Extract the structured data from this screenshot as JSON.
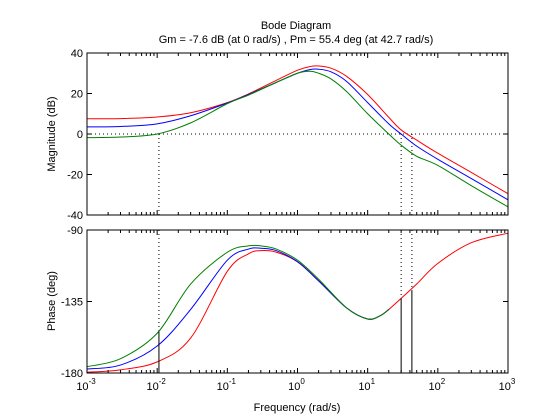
{
  "chart_data": [
    {
      "type": "line",
      "title": "Bode Diagram",
      "subtitle": "Gm = -7.6 dB (at 0 rad/s) ,  Pm = 55.4 deg (at 42.7 rad/s)",
      "xlabel": "",
      "ylabel": "Magnitude (dB)",
      "xscale": "log",
      "xlim": [
        0.001,
        1000
      ],
      "ylim": [
        -40,
        40
      ],
      "y_ticks": [
        "-40",
        "-20",
        "0",
        "20",
        "40"
      ],
      "grid": false,
      "reference_line_y": 0,
      "series": [
        {
          "color": "#ff0000",
          "x": [
            0.001,
            0.003,
            0.01,
            0.03,
            0.1,
            0.2,
            0.5,
            1,
            1.5,
            2,
            3,
            5,
            10,
            20,
            30,
            50,
            100,
            300,
            1000
          ],
          "y": [
            7.5,
            7.6,
            8.4,
            10.5,
            15.5,
            19.8,
            26.5,
            31.5,
            33.3,
            33.6,
            32.5,
            28.5,
            19.5,
            8.2,
            2.0,
            -3.0,
            -9.5,
            -19.0,
            -29.5
          ]
        },
        {
          "color": "#0000ff",
          "x": [
            0.001,
            0.003,
            0.01,
            0.03,
            0.1,
            0.2,
            0.5,
            1,
            1.5,
            2,
            3,
            5,
            10,
            20,
            30,
            50,
            100,
            300,
            1000
          ],
          "y": [
            3.5,
            3.7,
            5.0,
            9.0,
            15.3,
            19.5,
            25.5,
            30.0,
            31.8,
            32.0,
            30.7,
            26.0,
            15.5,
            5.0,
            0.0,
            -6.0,
            -12.5,
            -22.0,
            -32.5
          ]
        },
        {
          "color": "#008000",
          "x": [
            0.001,
            0.003,
            0.01,
            0.03,
            0.1,
            0.2,
            0.5,
            1,
            1.5,
            2,
            3,
            5,
            10,
            20,
            30,
            50,
            100,
            300,
            1000
          ],
          "y": [
            -1.8,
            -1.5,
            0.0,
            5.5,
            15.0,
            19.2,
            25.5,
            30.0,
            31.0,
            30.0,
            27.2,
            21.0,
            10.0,
            0.0,
            -5.5,
            -11.0,
            -15.5,
            -25.5,
            -36.0
          ]
        }
      ],
      "marker_frequencies": [
        0.0106,
        30,
        42.7
      ]
    },
    {
      "type": "line",
      "title": "",
      "xlabel": "Frequency  (rad/s)",
      "ylabel": "Phase (deg)",
      "xscale": "log",
      "xlim": [
        0.001,
        1000
      ],
      "ylim": [
        -180,
        -90
      ],
      "x_ticks": [
        {
          "base": "10",
          "exp": "-3"
        },
        {
          "base": "10",
          "exp": "-2"
        },
        {
          "base": "10",
          "exp": "-1"
        },
        {
          "base": "10",
          "exp": "0"
        },
        {
          "base": "10",
          "exp": "1"
        },
        {
          "base": "10",
          "exp": "2"
        },
        {
          "base": "10",
          "exp": "3"
        }
      ],
      "y_ticks": [
        "-180",
        "-135",
        "-90"
      ],
      "grid": false,
      "series": [
        {
          "color": "#ff0000",
          "x": [
            0.001,
            0.003,
            0.01,
            0.03,
            0.1,
            0.2,
            0.3,
            0.5,
            1,
            2,
            5,
            10,
            15,
            20,
            30,
            50,
            100,
            300,
            1000
          ],
          "y": [
            -179.5,
            -178,
            -173,
            -158,
            -116,
            -105,
            -103,
            -104,
            -110,
            -122,
            -139,
            -146,
            -144,
            -140,
            -133,
            -124,
            -111,
            -98,
            -92
          ]
        },
        {
          "color": "#0000ff",
          "x": [
            0.001,
            0.003,
            0.01,
            0.03,
            0.1,
            0.2,
            0.3,
            0.5,
            1,
            2,
            5,
            10,
            15,
            20
          ],
          "y": [
            -177.5,
            -175,
            -163,
            -140,
            -109,
            -102,
            -101.5,
            -103,
            -110,
            -122,
            -139,
            -146,
            -144,
            -140
          ]
        },
        {
          "color": "#008000",
          "x": [
            0.001,
            0.003,
            0.01,
            0.03,
            0.1,
            0.2,
            0.3,
            0.5,
            1,
            2,
            5,
            10,
            15,
            20
          ],
          "y": [
            -176,
            -171,
            -155,
            -124,
            -104,
            -100,
            -100,
            -102,
            -109,
            -121,
            -139,
            -146,
            -144,
            -140
          ]
        }
      ],
      "marker_frequencies": [
        0.0106,
        30,
        42.7
      ],
      "stem_lines": [
        {
          "x": 0.0106,
          "y_top": -154
        },
        {
          "x": 30,
          "y_top": -133
        },
        {
          "x": 42.7,
          "y_top": -128
        }
      ]
    }
  ]
}
